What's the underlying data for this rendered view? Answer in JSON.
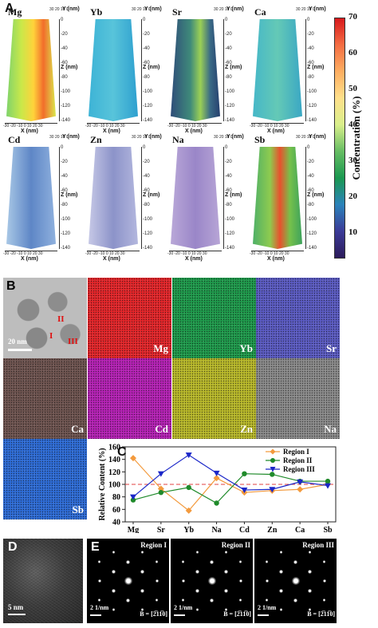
{
  "panel_letters": {
    "A": "A",
    "B": "B",
    "C": "C",
    "D": "D",
    "E": "E"
  },
  "panel_a": {
    "elements": [
      "Mg",
      "Yb",
      "Sr",
      "Ca",
      "Cd",
      "Zn",
      "Na",
      "Sb"
    ],
    "z_ticks": [
      "0",
      "-20",
      "-40",
      "-60",
      "-80",
      "-100",
      "-120",
      "-140"
    ],
    "x_ticks": [
      "-30",
      "-20",
      "-10",
      "0",
      "10",
      "20",
      "30"
    ],
    "y_ticks": [
      "30",
      "20",
      "10",
      "0"
    ],
    "x_axis": "X (nm)",
    "y_axis": "Y (nm)",
    "z_axis": "Z (nm)",
    "colorbar": {
      "ticks": [
        "70",
        "60",
        "50",
        "40",
        "30",
        "20",
        "10"
      ],
      "title": "Concentration (%)",
      "colors": [
        "#d7191c",
        "#f46d43",
        "#fdae61",
        "#fee08b",
        "#d9ef8b",
        "#66bd63",
        "#1a9850",
        "#2b83ba",
        "#3b3b98",
        "#2c1b5a"
      ]
    }
  },
  "panel_b": {
    "maps": [
      {
        "label": "Mg",
        "color": "#e3262a"
      },
      {
        "label": "Yb",
        "color": "#1f9a4c"
      },
      {
        "label": "Sr",
        "color": "#5b5bc2"
      },
      {
        "label": "Ca",
        "color": "#6e5450"
      },
      {
        "label": "Cd",
        "color": "#b522b5"
      },
      {
        "label": "Zn",
        "color": "#b8b82a"
      },
      {
        "label": "Na",
        "color": "#8a8a8a"
      },
      {
        "label": "Sb",
        "color": "#2e6cd6"
      }
    ],
    "scale_bar": "20 nm",
    "regions": [
      "II",
      "I",
      "III"
    ]
  },
  "chart_data": {
    "type": "line",
    "categories": [
      "Mg",
      "Sr",
      "Yb",
      "Na",
      "Cd",
      "Zn",
      "Ca",
      "Sb"
    ],
    "series": [
      {
        "name": "Region I",
        "color": "#f39a3d",
        "marker": "diamond",
        "values": [
          142,
          93,
          58,
          110,
          87,
          90,
          92,
          100
        ]
      },
      {
        "name": "Region II",
        "color": "#1f8a2a",
        "marker": "circle",
        "values": [
          75,
          87,
          95,
          70,
          117,
          116,
          105,
          105
        ]
      },
      {
        "name": "Region III",
        "color": "#1a26c8",
        "marker": "triangle",
        "values": [
          80,
          117,
          147,
          118,
          91,
          92,
          104,
          98
        ]
      }
    ],
    "ylabel": "Relative Content (%)",
    "ylim": [
      40,
      160
    ],
    "yticks": [
      40,
      60,
      80,
      100,
      120,
      140,
      160
    ],
    "reference_line": 100
  },
  "panel_d": {
    "scale_bar": "5 nm"
  },
  "panel_e": {
    "patterns": [
      {
        "title": "Region I",
        "scale": "2 1/nm",
        "zone": "B = [2̅11̅0]"
      },
      {
        "title": "Region II",
        "scale": "2 1/nm",
        "zone": "B = [2̅11̅0]"
      },
      {
        "title": "Region III",
        "scale": "2 1/nm",
        "zone": "B = [2̅11̅0]"
      }
    ]
  }
}
